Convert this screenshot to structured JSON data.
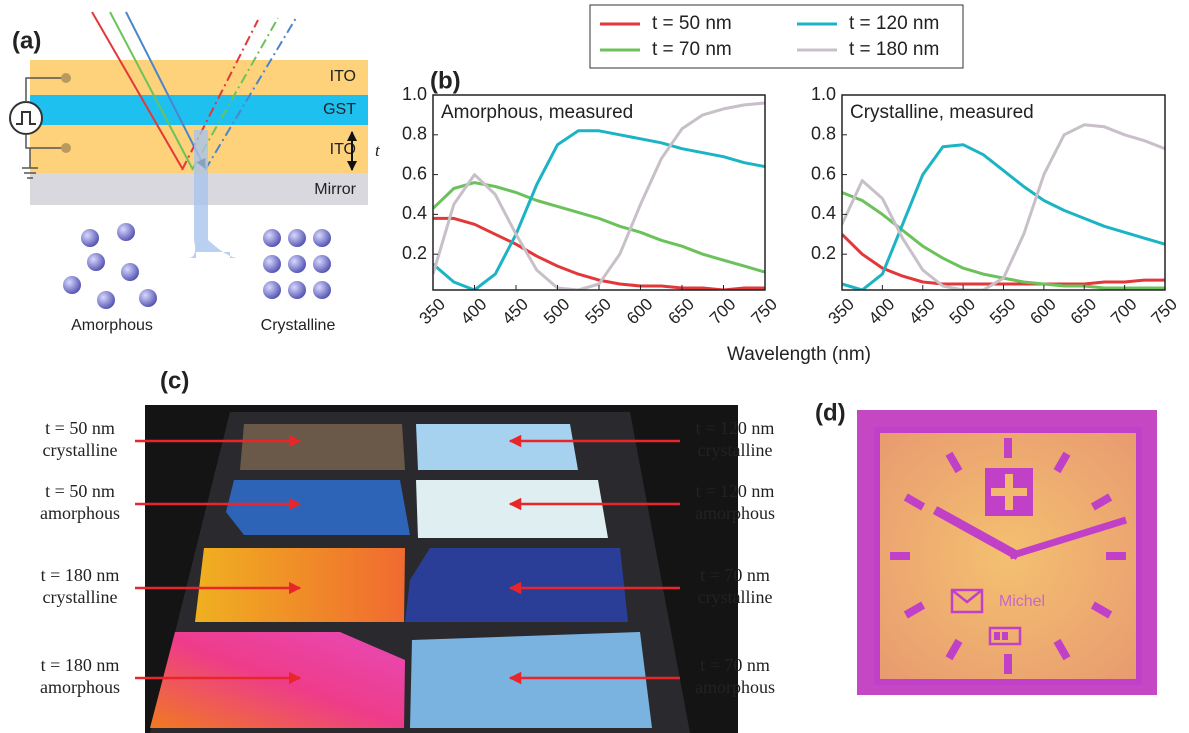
{
  "panel_a": {
    "label": "(a)",
    "layers": [
      "ITO",
      "GST",
      "ITO",
      "Mirror"
    ],
    "thickness": "t",
    "atoms": [
      "Amorphous",
      "Crystalline"
    ]
  },
  "panel_b": {
    "label": "(b)"
  },
  "chart_data": [
    {
      "type": "line",
      "title": "Amorphous, measured",
      "xlabel": "Wavelength (nm)",
      "x": [
        350,
        375,
        400,
        425,
        450,
        475,
        500,
        525,
        550,
        575,
        600,
        625,
        650,
        675,
        700,
        725,
        750
      ],
      "xlim": [
        350,
        750
      ],
      "xticks": [
        350,
        400,
        450,
        500,
        550,
        600,
        650,
        700,
        750
      ],
      "ylim": [
        0.02,
        1
      ],
      "yticks": [
        0.2,
        0.4,
        0.6,
        0.8,
        {
          "value": 1,
          "label": "1.0"
        }
      ],
      "series": [
        {
          "name": "t = 50 nm",
          "color": "#e2383a",
          "values": [
            0.38,
            0.38,
            0.35,
            0.3,
            0.25,
            0.19,
            0.14,
            0.1,
            0.07,
            0.05,
            0.04,
            0.04,
            0.03,
            0.03,
            0.02,
            0.03,
            0.03
          ]
        },
        {
          "name": "t = 70 nm",
          "color": "#6cc25a",
          "values": [
            0.43,
            0.53,
            0.56,
            0.54,
            0.51,
            0.47,
            0.44,
            0.41,
            0.38,
            0.34,
            0.31,
            0.27,
            0.24,
            0.2,
            0.17,
            0.14,
            0.11
          ]
        },
        {
          "name": "t = 120 nm",
          "color": "#1cb4c4",
          "values": [
            0.15,
            0.06,
            0.02,
            0.1,
            0.3,
            0.55,
            0.75,
            0.82,
            0.82,
            0.8,
            0.78,
            0.76,
            0.73,
            0.71,
            0.69,
            0.66,
            0.64
          ]
        },
        {
          "name": "t = 180 nm",
          "color": "#c8c0c8",
          "values": [
            0.1,
            0.45,
            0.6,
            0.5,
            0.3,
            0.12,
            0.03,
            0.02,
            0.05,
            0.2,
            0.45,
            0.68,
            0.83,
            0.9,
            0.93,
            0.95,
            0.96
          ]
        }
      ]
    },
    {
      "type": "line",
      "title": "Crystalline, measured",
      "x": [
        350,
        375,
        400,
        425,
        450,
        475,
        500,
        525,
        550,
        575,
        600,
        625,
        650,
        675,
        700,
        725,
        750
      ],
      "xlim": [
        350,
        750
      ],
      "xticks": [
        350,
        400,
        450,
        500,
        550,
        600,
        650,
        700,
        750
      ],
      "ylim": [
        0.02,
        1
      ],
      "yticks": [
        0.2,
        0.4,
        0.6,
        0.8,
        {
          "value": 1,
          "label": "1.0"
        }
      ],
      "series": [
        {
          "color": "#e2383a",
          "values": [
            0.3,
            0.2,
            0.13,
            0.09,
            0.06,
            0.05,
            0.05,
            0.05,
            0.05,
            0.05,
            0.05,
            0.05,
            0.05,
            0.06,
            0.06,
            0.07,
            0.07
          ]
        },
        {
          "color": "#6cc25a",
          "values": [
            0.51,
            0.47,
            0.4,
            0.32,
            0.24,
            0.18,
            0.13,
            0.1,
            0.08,
            0.06,
            0.05,
            0.04,
            0.04,
            0.03,
            0.03,
            0.03,
            0.03
          ]
        },
        {
          "color": "#1cb4c4",
          "values": [
            0.05,
            0.02,
            0.1,
            0.35,
            0.6,
            0.74,
            0.75,
            0.7,
            0.62,
            0.54,
            0.47,
            0.42,
            0.38,
            0.34,
            0.31,
            0.28,
            0.25
          ]
        },
        {
          "color": "#c8c0c8",
          "values": [
            0.35,
            0.57,
            0.48,
            0.28,
            0.12,
            0.04,
            0.02,
            0.02,
            0.08,
            0.3,
            0.6,
            0.8,
            0.85,
            0.84,
            0.8,
            0.77,
            0.73
          ]
        }
      ]
    }
  ],
  "panel_c": {
    "label": "(c)",
    "left": [
      [
        "t = 50 nm",
        "crystalline"
      ],
      [
        "t = 50 nm",
        "amorphous"
      ],
      [
        "t = 180 nm",
        "crystalline"
      ],
      [
        "t = 180 nm",
        "amorphous"
      ]
    ],
    "right": [
      [
        "t = 120 nm",
        "crystalline"
      ],
      [
        "t = 120 nm",
        "amorphous"
      ],
      [
        "t = 70 nm",
        "crystalline"
      ],
      [
        "t = 70 nm",
        "amorphous"
      ]
    ]
  },
  "panel_d": {
    "label": "(d)",
    "text": "Michel"
  }
}
